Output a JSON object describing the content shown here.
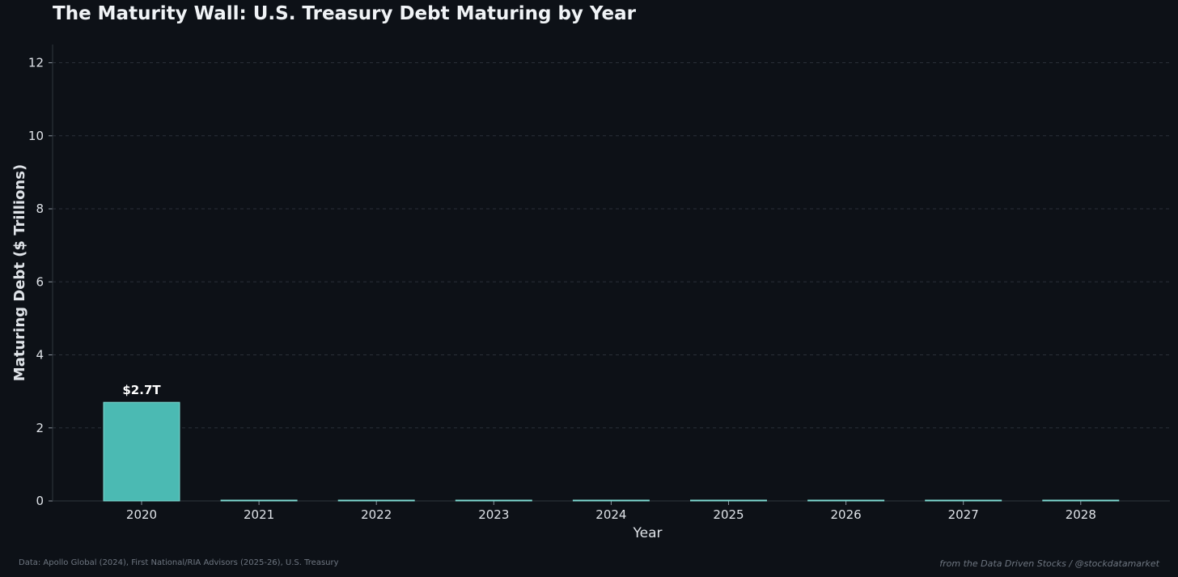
{
  "title": "The Maturity Wall: U.S. Treasury Debt Maturing by Year",
  "source_note": "Data: Apollo Global (2024), First National/RIA Advisors (2025-26), U.S. Treasury",
  "credit_note": "from the Data Driven Stocks / @stockdatamarket",
  "colors": {
    "background": "#0d1117",
    "bar": "#4bbab3",
    "bar_edge": "#7fdcd3",
    "grid": "#2a3038",
    "axis_text": "#dfe3e8",
    "label_text": "#ffffff"
  },
  "chart_data": {
    "type": "bar",
    "title": "The Maturity Wall: U.S. Treasury Debt Maturing by Year",
    "xlabel": "Year",
    "ylabel": "Maturing Debt ($ Trillions)",
    "categories": [
      "2020",
      "2021",
      "2022",
      "2023",
      "2024",
      "2025",
      "2026",
      "2027",
      "2028"
    ],
    "values": [
      2.7,
      0,
      0,
      0,
      0,
      0,
      0,
      0,
      0
    ],
    "data_labels": [
      "$2.7T",
      "",
      "",
      "",
      "",
      "",
      "",
      "",
      ""
    ],
    "yticks": [
      0,
      2,
      4,
      6,
      8,
      10,
      12
    ],
    "ylim": [
      0,
      12.5
    ],
    "grid": true,
    "grid_style": "dashed",
    "legend": "none"
  }
}
